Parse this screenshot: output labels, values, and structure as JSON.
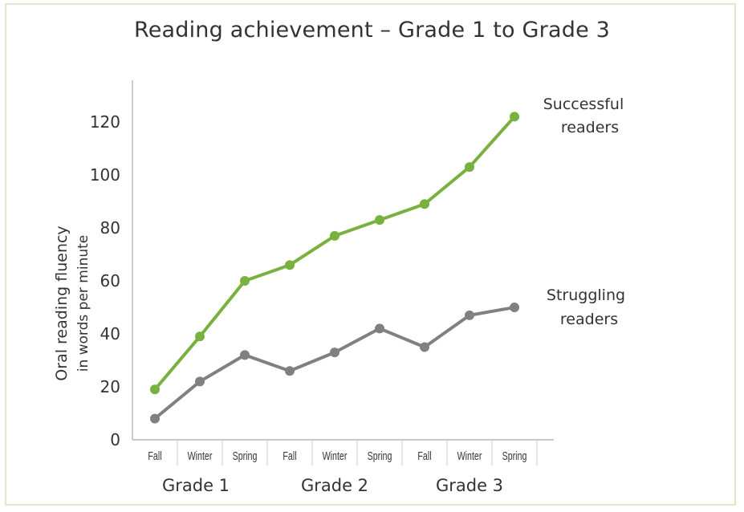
{
  "chart_data": {
    "type": "line",
    "title": "Reading achievement – Grade 1 to Grade 3",
    "ylabel_line1": "Oral reading fluency",
    "ylabel_line2": "in words per minute",
    "ylim": [
      0,
      130
    ],
    "yticks": [
      0,
      20,
      40,
      60,
      80,
      100,
      120
    ],
    "categories": [
      "Fall",
      "Winter",
      "Spring",
      "Fall",
      "Winter",
      "Spring",
      "Fall",
      "Winter",
      "Spring"
    ],
    "groups": [
      "Grade 1",
      "Grade 2",
      "Grade 3"
    ],
    "series": [
      {
        "name_line1": "Successful",
        "name_line2": "readers",
        "color": "#79b13e",
        "values": [
          19,
          39,
          60,
          66,
          77,
          83,
          89,
          103,
          122
        ]
      },
      {
        "name_line1": "Struggling",
        "name_line2": "readers",
        "color": "#808080",
        "values": [
          8,
          22,
          32,
          26,
          33,
          42,
          35,
          47,
          50
        ]
      }
    ],
    "grid": false
  }
}
